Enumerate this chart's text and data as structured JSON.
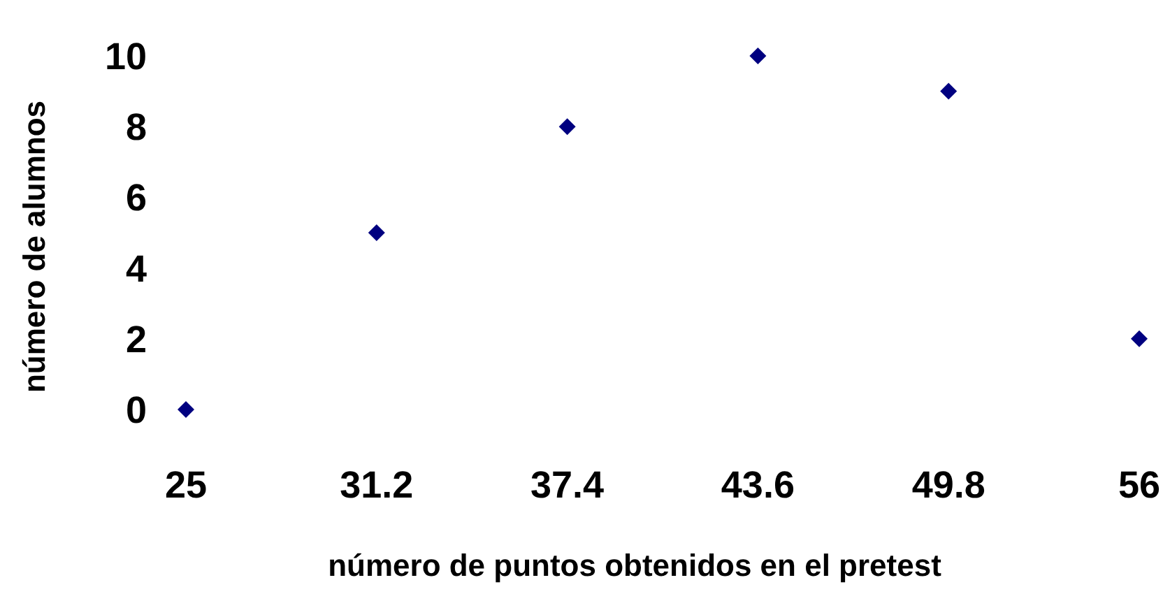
{
  "chart_data": {
    "type": "scatter",
    "xlabel": "número de puntos obtenidos en el pretest",
    "ylabel": "número de alumnos",
    "x": [
      25,
      31.2,
      37.4,
      43.6,
      49.8,
      56
    ],
    "series": [
      {
        "color": "#000080",
        "values": [
          0,
          5,
          8,
          10,
          9,
          2
        ]
      }
    ],
    "xlim": [
      25,
      56
    ],
    "xticks": [
      25,
      31.2,
      37.4,
      43.6,
      49.8,
      56
    ],
    "ylim": [
      0,
      10
    ],
    "yticks": [
      0,
      2,
      4,
      6,
      8,
      10
    ],
    "marker": "diamond"
  }
}
